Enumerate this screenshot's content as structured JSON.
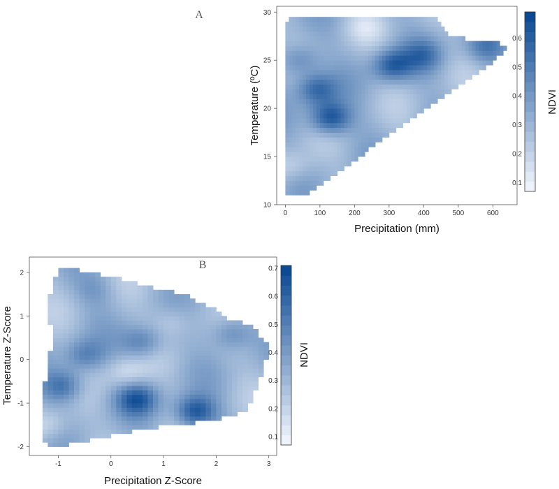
{
  "chart_data": [
    {
      "type": "heatmap",
      "panel_label": "A",
      "title": "",
      "xlabel": "Precipitation (mm)",
      "ylabel": "Temperature (ºC)",
      "xlim": [
        -25,
        670
      ],
      "ylim": [
        10,
        30.6
      ],
      "x_ticks": [
        0,
        100,
        200,
        300,
        400,
        500,
        600
      ],
      "y_ticks": [
        10,
        15,
        20,
        25,
        30
      ],
      "x_tick_labels": [
        "0",
        "100",
        "200",
        "300",
        "400",
        "500",
        "600"
      ],
      "y_tick_labels": [
        "10",
        "15",
        "20",
        "25",
        "30"
      ],
      "x_cell_size": 10,
      "y_cell_size": 0.5,
      "colorbar": {
        "label": "NDVI",
        "range": [
          0.07,
          0.69
        ],
        "ticks": [
          0.1,
          0.2,
          0.3,
          0.4,
          0.5,
          0.6
        ],
        "tick_labels": [
          "0.1",
          "0.2",
          "0.3",
          "0.4",
          "0.5",
          "0.6"
        ],
        "color_low": "#eef3fb",
        "color_high": "#0d4a94"
      },
      "domain_outline": [
        [
          0,
          11
        ],
        [
          60,
          11
        ],
        [
          640,
          25.9
        ],
        [
          640,
          26.6
        ],
        [
          600,
          26.9
        ],
        [
          480,
          27.4
        ],
        [
          440,
          29.3
        ],
        [
          10,
          29.3
        ],
        [
          0,
          28.5
        ]
      ],
      "hotspots": [
        {
          "x": 130,
          "y": 19,
          "ndvi": 0.68
        },
        {
          "x": 310,
          "y": 24.5,
          "ndvi": 0.62
        },
        {
          "x": 90,
          "y": 22,
          "ndvi": 0.58
        },
        {
          "x": 40,
          "y": 25,
          "ndvi": 0.5
        },
        {
          "x": 400,
          "y": 25.5,
          "ndvi": 0.5
        },
        {
          "x": 580,
          "y": 26.3,
          "ndvi": 0.5
        },
        {
          "x": 20,
          "y": 14,
          "ndvi": 0.18
        },
        {
          "x": 230,
          "y": 28.5,
          "ndvi": 0.2
        }
      ]
    },
    {
      "type": "heatmap",
      "panel_label": "B",
      "title": "",
      "xlabel": "Precipitation Z-Score",
      "ylabel": "Temperature Z-Score",
      "xlim": [
        -1.55,
        3.15
      ],
      "ylim": [
        -2.2,
        2.35
      ],
      "x_ticks": [
        -1,
        0,
        1,
        2,
        3
      ],
      "y_ticks": [
        -2,
        -1,
        0,
        1,
        2
      ],
      "x_tick_labels": [
        "-1",
        "0",
        "1",
        "2",
        "3"
      ],
      "y_tick_labels": [
        "-2",
        "-1",
        "0",
        "1",
        "2"
      ],
      "x_cell_size": 0.1,
      "y_cell_size": 0.1,
      "colorbar": {
        "label": "NDVI",
        "range": [
          0.07,
          0.71
        ],
        "ticks": [
          0.1,
          0.2,
          0.3,
          0.4,
          0.5,
          0.6,
          0.7
        ],
        "tick_labels": [
          "0.1",
          "0.2",
          "0.3",
          "0.4",
          "0.5",
          "0.6",
          "0.7"
        ],
        "color_low": "#eef3fb",
        "color_high": "#0d4a94"
      },
      "domain_outline": [
        [
          -1.3,
          -1.9
        ],
        [
          -1.0,
          -2.0
        ],
        [
          0.6,
          -1.6
        ],
        [
          1.9,
          -1.4
        ],
        [
          2.6,
          -1.2
        ],
        [
          2.9,
          -0.3
        ],
        [
          3.0,
          0.3
        ],
        [
          2.7,
          0.8
        ],
        [
          2.3,
          0.9
        ],
        [
          1.9,
          1.2
        ],
        [
          1.4,
          1.5
        ],
        [
          0.8,
          1.65
        ],
        [
          0.1,
          1.9
        ],
        [
          -0.5,
          2.0
        ],
        [
          -0.6,
          2.1
        ],
        [
          -1.0,
          2.1
        ],
        [
          -1.1,
          1.8
        ],
        [
          -1.2,
          1.2
        ],
        [
          -1.1,
          0.5
        ],
        [
          -1.25,
          -0.5
        ],
        [
          -1.3,
          -1.3
        ]
      ],
      "hotspots": [
        {
          "x": 1.6,
          "y": -1.2,
          "ndvi": 0.68
        },
        {
          "x": 0.5,
          "y": -0.9,
          "ndvi": 0.62
        },
        {
          "x": -0.9,
          "y": -0.6,
          "ndvi": 0.58
        },
        {
          "x": 2.3,
          "y": 0.6,
          "ndvi": 0.5
        },
        {
          "x": -0.5,
          "y": 0.1,
          "ndvi": 0.5
        },
        {
          "x": 0.6,
          "y": 0.4,
          "ndvi": 0.52
        },
        {
          "x": -0.3,
          "y": 1.6,
          "ndvi": 0.4
        },
        {
          "x": 0.3,
          "y": -0.3,
          "ndvi": 0.15
        },
        {
          "x": -1.2,
          "y": -1.5,
          "ndvi": 0.15
        },
        {
          "x": 1.2,
          "y": 0.9,
          "ndvi": 0.2
        }
      ]
    }
  ]
}
